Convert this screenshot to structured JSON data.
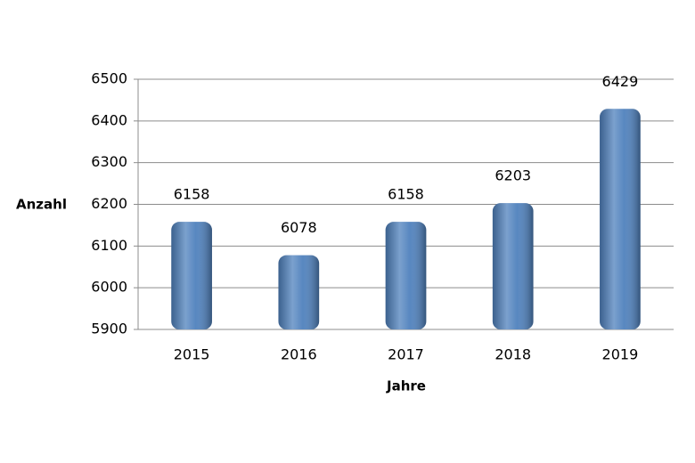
{
  "chart_data": {
    "type": "bar",
    "x_label": "Jahre",
    "y_label": "Anzahl",
    "categories": [
      "2015",
      "2016",
      "2017",
      "2018",
      "2019"
    ],
    "values": [
      6158,
      6078,
      6158,
      6203,
      6429
    ],
    "color": "#4f81bd",
    "ylim": [
      5900,
      6500
    ],
    "yticks": [
      5900,
      6000,
      6100,
      6200,
      6300,
      6400,
      6500
    ],
    "grid": true
  }
}
